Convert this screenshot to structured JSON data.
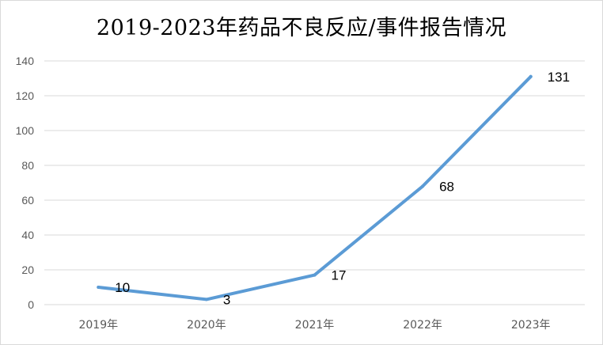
{
  "chart_data": {
    "type": "line",
    "title": "2019-2023年药品不良反应/事件报告情况",
    "xlabel": "",
    "ylabel": "",
    "categories": [
      "2019年",
      "2020年",
      "2021年",
      "2022年",
      "2023年"
    ],
    "series": [
      {
        "values": [
          10,
          3,
          17,
          68,
          131
        ],
        "color": "#5b9bd5"
      }
    ],
    "ylim": [
      0,
      140
    ],
    "yticks": [
      0,
      20,
      40,
      60,
      80,
      100,
      120,
      140
    ],
    "grid": true,
    "legend": "none",
    "data_labels": [
      "10",
      "3",
      "17",
      "68",
      "131"
    ]
  }
}
